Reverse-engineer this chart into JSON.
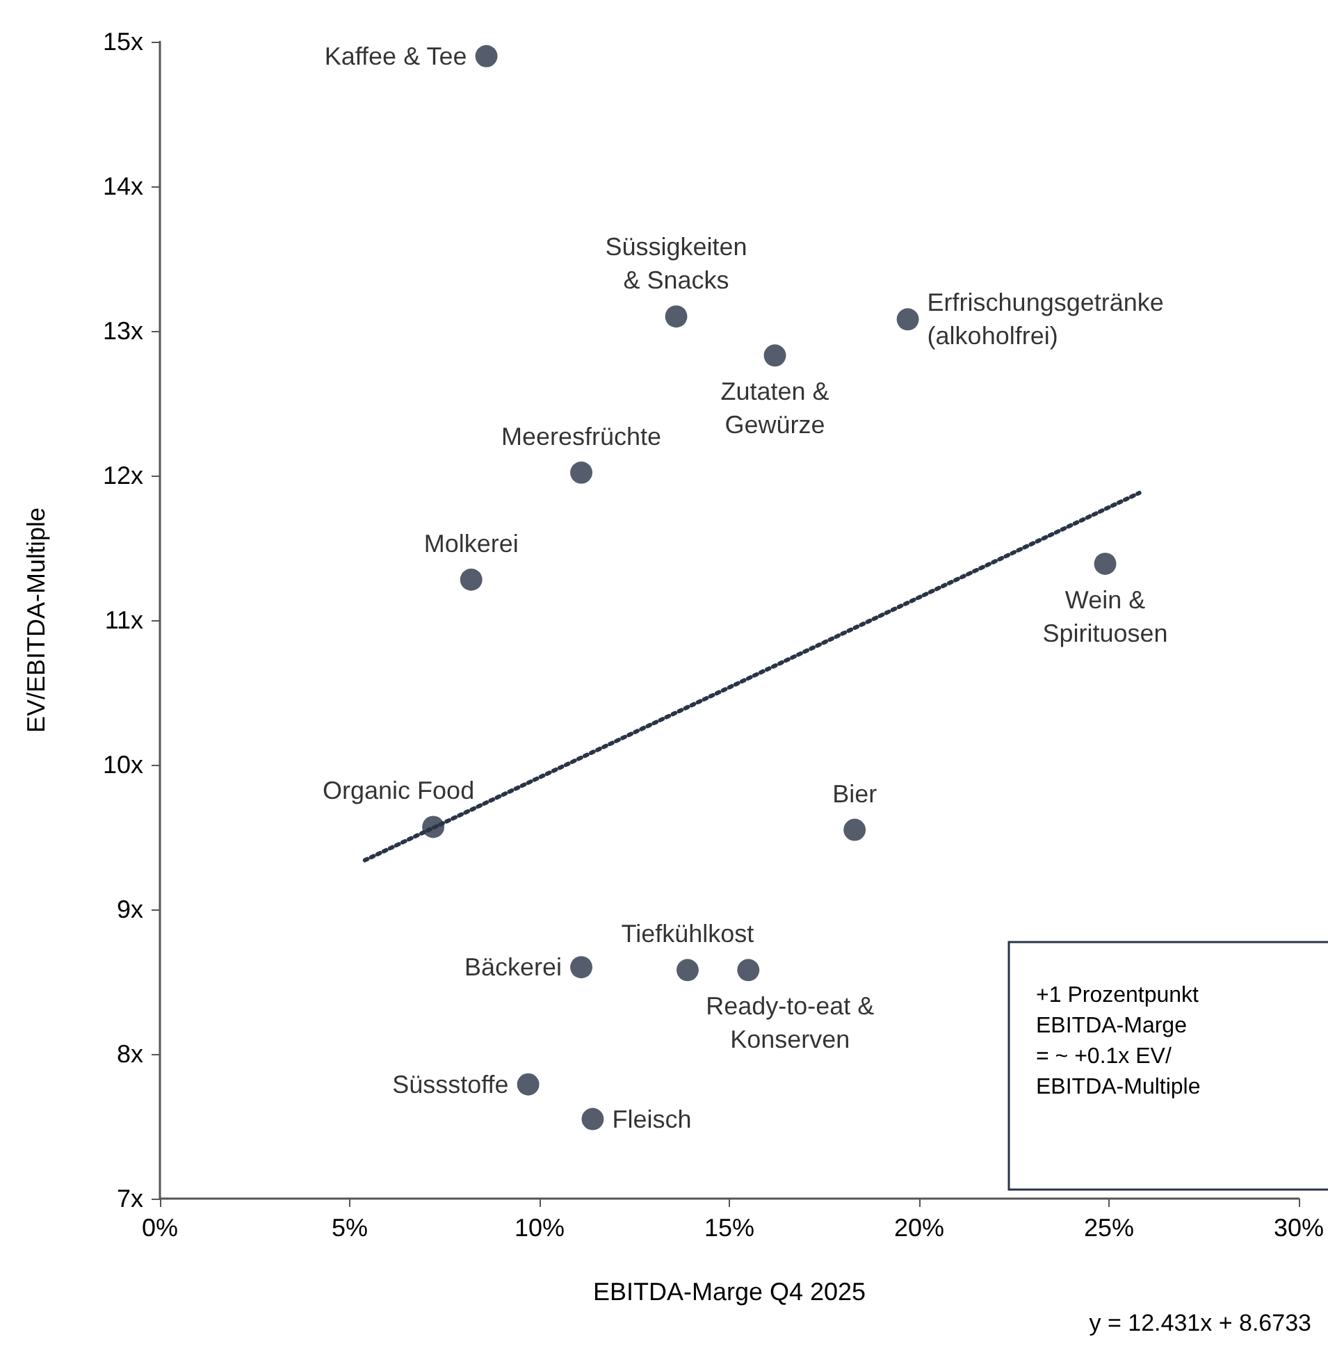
{
  "chart_data": {
    "type": "scatter",
    "xlabel": "EBITDA-Marge Q4 2025",
    "ylabel": "EV/EBITDA-Multiple",
    "xlim": [
      0,
      30
    ],
    "xticks": [
      {
        "value": 0,
        "label": "0%"
      },
      {
        "value": 5,
        "label": "5%"
      },
      {
        "value": 10,
        "label": "10%"
      },
      {
        "value": 15,
        "label": "15%"
      },
      {
        "value": 20,
        "label": "20%"
      },
      {
        "value": 25,
        "label": "25%"
      },
      {
        "value": 30,
        "label": "30%"
      }
    ],
    "ylim": [
      7,
      15
    ],
    "yticks": [
      {
        "value": 7,
        "label": "7x"
      },
      {
        "value": 8,
        "label": "8x"
      },
      {
        "value": 9,
        "label": "9x"
      },
      {
        "value": 10,
        "label": "10x"
      },
      {
        "value": 11,
        "label": "11x"
      },
      {
        "value": 12,
        "label": "12x"
      },
      {
        "value": 13,
        "label": "13x"
      },
      {
        "value": 14,
        "label": "14x"
      },
      {
        "value": 15,
        "label": "15x"
      }
    ],
    "marker": "circle",
    "series": [
      {
        "color": "#2b3447",
        "x": [
          8.6,
          13.6,
          16.2,
          19.7,
          11.1,
          8.2,
          24.9,
          7.2,
          18.3,
          11.1,
          13.9,
          15.5,
          9.7,
          11.4
        ],
        "values": [
          14.9,
          13.1,
          12.83,
          13.08,
          12.02,
          11.28,
          11.39,
          9.57,
          9.55,
          8.6,
          8.58,
          8.58,
          7.79,
          7.55
        ]
      },
      {
        "type": "line",
        "color": "#2b3447",
        "line_style": "dotted",
        "marker": "none",
        "x": [
          5.4,
          25.8
        ],
        "values": [
          9.34,
          11.88
        ]
      }
    ],
    "annotations": [
      {
        "text": "Kaffee & Tee",
        "x": 8.6,
        "y": 14.9
      },
      {
        "text": "Süssigkeiten\n& Snacks",
        "x": 13.6,
        "y": 13.1
      },
      {
        "text": "Zutaten &\nGewürze",
        "x": 16.2,
        "y": 12.83
      },
      {
        "text": "Erfrischungsgetränke\n(alkoholfrei)",
        "x": 19.7,
        "y": 13.08
      },
      {
        "text": "Meeresfrüchte",
        "x": 11.1,
        "y": 12.02
      },
      {
        "text": "Molkerei",
        "x": 8.2,
        "y": 11.28
      },
      {
        "text": "Wein &\nSpirituosen",
        "x": 24.9,
        "y": 11.39
      },
      {
        "text": "Organic Food",
        "x": 7.2,
        "y": 9.57
      },
      {
        "text": "Bier",
        "x": 18.3,
        "y": 9.55
      },
      {
        "text": "Bäckerei",
        "x": 11.1,
        "y": 8.6
      },
      {
        "text": "Tiefkühlkost",
        "x": 13.9,
        "y": 8.58
      },
      {
        "text": "Ready-to-eat &\nKonserven",
        "x": 15.5,
        "y": 8.58
      },
      {
        "text": "Süssstoffe",
        "x": 9.7,
        "y": 7.79
      },
      {
        "text": "Fleisch",
        "x": 11.4,
        "y": 7.55
      },
      "+1 Prozentpunkt\nEBITDA-Marge\n= ~ +0.1x EV/\nEBITDA-Multiple",
      "y = 12.431x + 8.6733"
    ]
  }
}
